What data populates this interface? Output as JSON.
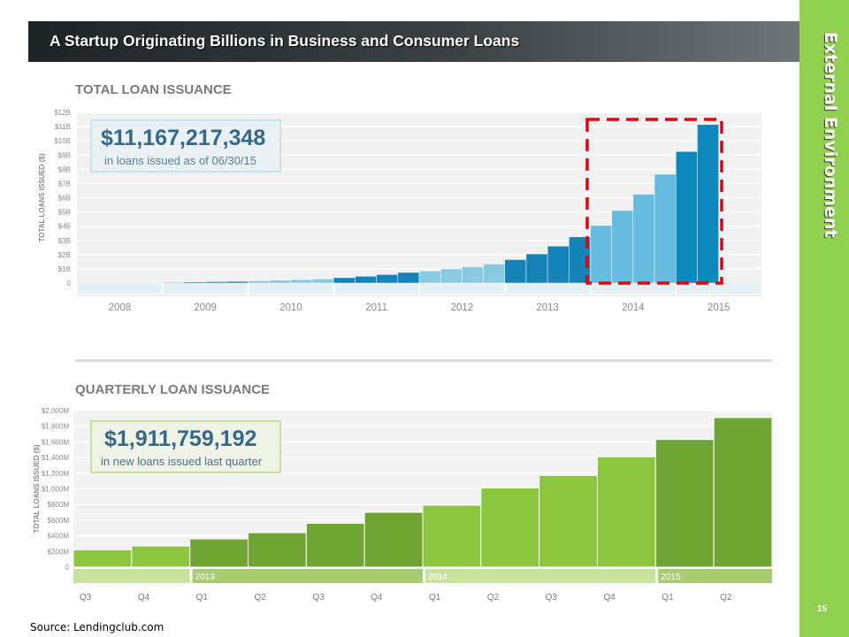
{
  "slide": {
    "title": "A Startup Originating Billions in Business and Consumer Loans",
    "side_label": "External Environment",
    "page_number": "15",
    "source": "Source: Lendingclub.com"
  },
  "colors": {
    "title_bar": "#2b3134",
    "side_bar": "#92d050",
    "highlight_box": "#e8000b"
  },
  "chart_data": [
    {
      "type": "bar",
      "title": "TOTAL LOAN ISSUANCE",
      "ylabel": "TOTAL LOANS ISSUED ($)",
      "ylim": [
        0,
        12
      ],
      "y_ticks": [
        "0",
        "$1B",
        "$2B",
        "$3B",
        "$4B",
        "$5B",
        "$6B",
        "$7B",
        "$8B",
        "$9B",
        "$10B",
        "$11B",
        "$12B"
      ],
      "year_labels": [
        "2008",
        "2009",
        "2010",
        "2011",
        "2012",
        "2013",
        "2014",
        "2015"
      ],
      "callout": {
        "amount": "$11,167,217,348",
        "caption": "in loans issued as of 06/30/15"
      },
      "highlight": "2014-2015",
      "groups": [
        {
          "year": "2008",
          "color": "#89c9e1",
          "values": [
            0.003,
            0.005,
            0.007,
            0.01
          ]
        },
        {
          "year": "2009",
          "color": "#1583b8",
          "values": [
            0.05,
            0.08,
            0.1,
            0.12
          ]
        },
        {
          "year": "2010",
          "color": "#89c9e1",
          "values": [
            0.16,
            0.2,
            0.25,
            0.3
          ]
        },
        {
          "year": "2011",
          "color": "#1583b8",
          "values": [
            0.38,
            0.48,
            0.6,
            0.75
          ]
        },
        {
          "year": "2012",
          "color": "#89c9e1",
          "values": [
            0.85,
            1.0,
            1.15,
            1.35
          ]
        },
        {
          "year": "2013",
          "color": "#1583b8",
          "values": [
            1.65,
            2.05,
            2.6,
            3.25
          ]
        },
        {
          "year": "2014",
          "color": "#66bcdf",
          "values": [
            4.05,
            5.1,
            6.25,
            7.65
          ]
        },
        {
          "year": "2015",
          "color": "#0d89bd",
          "values": [
            9.25,
            11.15
          ]
        }
      ]
    },
    {
      "type": "bar",
      "title": "QUARTERLY LOAN ISSUANCE",
      "ylabel": "TOTAL LOANS ISSUED ($)",
      "ylim": [
        0,
        2000
      ],
      "y_ticks": [
        "0",
        "$200M",
        "$400M",
        "$600M",
        "$800M",
        "$1,000M",
        "$1,200M",
        "$1,400M",
        "$1,600M",
        "$1,800M",
        "$2,000M"
      ],
      "categories": [
        "Q3",
        "Q4",
        "Q1",
        "Q2",
        "Q3",
        "Q4",
        "Q1",
        "Q2",
        "Q3",
        "Q4",
        "Q1",
        "Q2"
      ],
      "year_labels": [
        "2013",
        "2014",
        "2015"
      ],
      "values": [
        220,
        270,
        360,
        440,
        560,
        700,
        790,
        1010,
        1170,
        1410,
        1630,
        1910
      ],
      "colors": [
        "#8cc63e",
        "#8cc63e",
        "#6fa535",
        "#6fa535",
        "#6fa535",
        "#6fa535",
        "#8cc63e",
        "#8cc63e",
        "#8cc63e",
        "#8cc63e",
        "#6fa535",
        "#6fa535"
      ],
      "callout": {
        "amount": "$1,911,759,192",
        "caption": "in new loans issued last quarter"
      }
    }
  ]
}
